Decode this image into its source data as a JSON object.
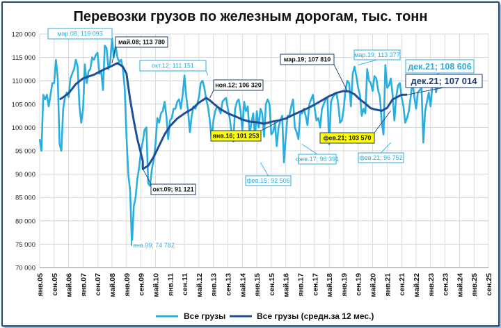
{
  "chart_data": {
    "type": "line",
    "title": "Перевозки грузов по железным дорогам, тыс. тонн",
    "ylim": [
      70000,
      120000
    ],
    "yticks": [
      "70 000",
      "75 000",
      "80 000",
      "85 000",
      "90 000",
      "95 000",
      "100 000",
      "105 000",
      "110 000",
      "115 000",
      "120 000"
    ],
    "xticks": [
      "янв.05",
      "сен.05",
      "май.06",
      "янв.07",
      "сен.07",
      "май.08",
      "янв.09",
      "сен.09",
      "май.10",
      "янв.11",
      "сен.11",
      "май.12",
      "янв.13",
      "сен.13",
      "май.14",
      "янв.15",
      "сен.15",
      "май.16",
      "янв.17",
      "сен.17",
      "май.18",
      "янв.19",
      "сен.19",
      "май.20",
      "янв.21",
      "сен.21",
      "май.22",
      "янв.23",
      "сен.23",
      "май.24",
      "янв.25",
      "сен.25"
    ],
    "grid": true,
    "legend_position": "bottom",
    "series": [
      {
        "name": "Все грузы",
        "color": "#29aee0",
        "x_unit": "месяц (янв.05 = 0)",
        "monthly_values": [
          97500,
          95000,
          107000,
          106000,
          107000,
          104500,
          107000,
          109500,
          109500,
          114500,
          110500,
          96500,
          95000,
          104000,
          106500,
          107500,
          106500,
          110500,
          111500,
          112500,
          114500,
          113000,
          104500,
          101000,
          104000,
          113500,
          109500,
          112000,
          112500,
          115000,
          114500,
          115500,
          116000,
          111500,
          112000,
          108000,
          117500,
          117000,
          112500,
          114000,
          119093,
          115000,
          117500,
          115000,
          114000,
          114500,
          112500,
          108500,
          98000,
          90000,
          86500,
          74782,
          83000,
          85000,
          89000,
          91500,
          95000,
          97000,
          99500,
          100000,
          88000,
          87500,
          91121,
          93000,
          96500,
          102000,
          101000,
          103000,
          103500,
          105500,
          102500,
          97500,
          101500,
          102000,
          104000,
          104000,
          105500,
          106000,
          104000,
          107000,
          111151,
          106500,
          103500,
          99000,
          102500,
          104500,
          104000,
          105000,
          106500,
          109500,
          110000,
          108500,
          106000,
          104500,
          101500,
          97500,
          101500,
          103500,
          104500,
          104000,
          103000,
          105500,
          106000,
          106320,
          104000,
          102000,
          99000,
          97000,
          104000,
          105500,
          106000,
          103500,
          99500,
          105500,
          103500,
          104500,
          98500,
          101000,
          103000,
          98000,
          103500,
          100000,
          104000,
          103000,
          98000,
          105000,
          106000,
          105000,
          98500,
          99000,
          101000,
          96000,
          100000,
          101500,
          102500,
          92506,
          98000,
          102500,
          102500,
          104500,
          106000,
          100000,
          99000,
          97500,
          103000,
          103000,
          104000,
          102500,
          100500,
          105000,
          106000,
          107000,
          104000,
          101500,
          102000,
          100000,
          104000,
          105000,
          106000,
          106500,
          96391,
          105500,
          106500,
          107000,
          107500,
          105000,
          101000,
          101500,
          104000,
          108000,
          110000,
          109500,
          104500,
          111500,
          113000,
          111000,
          108500,
          107000,
          102500,
          104000,
          103000,
          112500,
          110000,
          109500,
          107810,
          111000,
          110500,
          108000,
          106500,
          101000,
          98500,
          113377,
          108500,
          109000,
          110500,
          107000,
          101500,
          106500,
          109000,
          109500,
          106500,
          104500,
          101000,
          102000,
          103500,
          106500,
          110000,
          106500,
          104000,
          107500,
          108000,
          108500,
          96752,
          103500,
          105500,
          107500,
          104500,
          109000,
          110500,
          107500,
          109500,
          108606
        ]
      },
      {
        "name": "Все грузы (средн.за 12 мес.)",
        "color": "#1f4e96",
        "x_start": 11,
        "points": [
          [
            11,
            106000
          ],
          [
            12,
            106200
          ],
          [
            16,
            107300
          ],
          [
            20,
            109300
          ],
          [
            24,
            110500
          ],
          [
            30,
            111300
          ],
          [
            35,
            112300
          ],
          [
            40,
            113200
          ],
          [
            43,
            113780
          ],
          [
            46,
            113000
          ],
          [
            48,
            111500
          ],
          [
            50,
            106000
          ],
          [
            52,
            101500
          ],
          [
            54,
            97500
          ],
          [
            57,
            92800
          ],
          [
            57,
            91121
          ],
          [
            60,
            91800
          ],
          [
            63,
            93700
          ],
          [
            66,
            96100
          ],
          [
            69,
            98500
          ],
          [
            72,
            100300
          ],
          [
            76,
            101900
          ],
          [
            80,
            103000
          ],
          [
            84,
            103900
          ],
          [
            88,
            105300
          ],
          [
            92,
            106320
          ],
          [
            94,
            105800
          ],
          [
            97,
            104800
          ],
          [
            100,
            103900
          ],
          [
            104,
            103000
          ],
          [
            108,
            102400
          ],
          [
            112,
            101700
          ],
          [
            116,
            101253
          ],
          [
            120,
            101100
          ],
          [
            124,
            100800
          ],
          [
            128,
            101200
          ],
          [
            132,
            101500
          ],
          [
            136,
            101900
          ],
          [
            140,
            102700
          ],
          [
            144,
            103400
          ],
          [
            148,
            104100
          ],
          [
            152,
            104900
          ],
          [
            156,
            105800
          ],
          [
            160,
            106700
          ],
          [
            164,
            107400
          ],
          [
            168,
            107810
          ],
          [
            171,
            107700
          ],
          [
            174,
            107100
          ],
          [
            177,
            106000
          ],
          [
            180,
            105100
          ],
          [
            183,
            104100
          ],
          [
            186,
            103800
          ],
          [
            189,
            103570
          ],
          [
            192,
            104200
          ],
          [
            195,
            106000
          ],
          [
            198,
            106600
          ],
          [
            200,
            107000
          ],
          [
            203,
            107014
          ]
        ]
      }
    ],
    "annotations": [
      {
        "text": "мар.08; 119 093",
        "style": "light"
      },
      {
        "text": "май.08;  113 780",
        "style": "dark"
      },
      {
        "text": "окт.12; 111 151",
        "style": "light"
      },
      {
        "text": "ноя.12;  106 320",
        "style": "dark"
      },
      {
        "text": "янв.16;  101 253",
        "style": "yellow"
      },
      {
        "text": "фев.15; 92 506",
        "style": "light"
      },
      {
        "text": "фев.17; 96 391",
        "style": "light"
      },
      {
        "text": "мар.19;  107 810",
        "style": "dark"
      },
      {
        "text": "мар.19; 113 377",
        "style": "light"
      },
      {
        "text": "фев.21;  103 570",
        "style": "yellow"
      },
      {
        "text": "фев.21; 96 752",
        "style": "light"
      },
      {
        "text": "дек.21; 108 606",
        "style": "light-big"
      },
      {
        "text": "дек.21;  107 014",
        "style": "dark-big"
      },
      {
        "text": "янв.09; 74 782",
        "style": "light-plain"
      },
      {
        "text": "окт.09;  91 121",
        "style": "dark"
      }
    ],
    "legend": [
      "Все грузы",
      "Все грузы (средн.за 12 мес.)"
    ]
  }
}
